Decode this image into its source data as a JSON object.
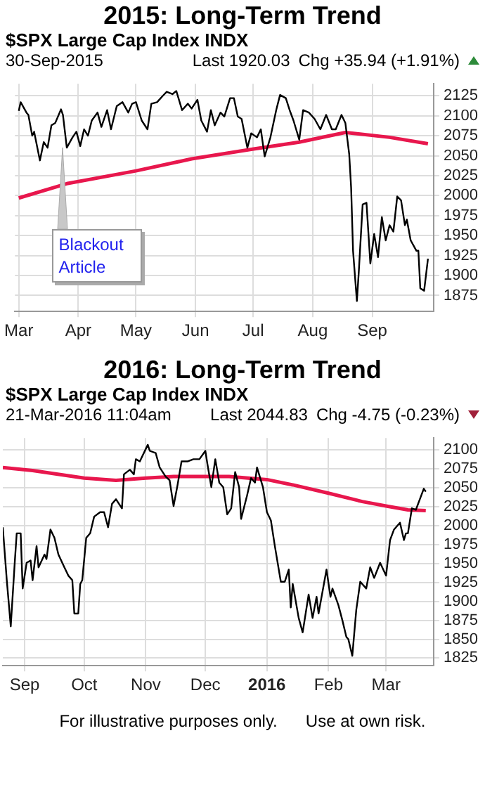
{
  "chart_data": [
    {
      "type": "line",
      "title": "2015:  Long-Term Trend",
      "subtitle": "$SPX  Large Cap Index  INDX",
      "annotations": [
        "30-Sep-2015",
        "Last 1920.03",
        "Chg +35.94 (+1.91%)",
        {
          "text": "Blackout Article",
          "x": "2015-03-24",
          "y": 2060
        }
      ],
      "xlim": [
        "2015-02-27",
        "2015-10-03"
      ],
      "xticks": [
        {
          "value": "2015-03-01",
          "label": "Mar"
        },
        {
          "value": "2015-04-01",
          "label": "Apr"
        },
        {
          "value": "2015-05-01",
          "label": "May"
        },
        {
          "value": "2015-06-01",
          "label": "Jun"
        },
        {
          "value": "2015-07-01",
          "label": "Jul"
        },
        {
          "value": "2015-08-01",
          "label": "Aug"
        },
        {
          "value": "2015-09-01",
          "label": "Sep"
        }
      ],
      "ylim": [
        1855,
        2140
      ],
      "yticks": [
        1875,
        1900,
        1925,
        1950,
        1975,
        2000,
        2025,
        2050,
        2075,
        2100,
        2125
      ],
      "grid": true,
      "series": [
        {
          "color": "#000000",
          "x": [
            "2015-03-01",
            "2015-03-02",
            "2015-03-05",
            "2015-03-06",
            "2015-03-08",
            "2015-03-09",
            "2015-03-12",
            "2015-03-14",
            "2015-03-16",
            "2015-03-18",
            "2015-03-20",
            "2015-03-23",
            "2015-03-24",
            "2015-03-26",
            "2015-03-29",
            "2015-03-31",
            "2015-04-02",
            "2015-04-04",
            "2015-04-06",
            "2015-04-08",
            "2015-04-11",
            "2015-04-13",
            "2015-04-16",
            "2015-04-18",
            "2015-04-21",
            "2015-04-24",
            "2015-04-27",
            "2015-04-29",
            "2015-05-01",
            "2015-05-04",
            "2015-05-07",
            "2015-05-09",
            "2015-05-12",
            "2015-05-15",
            "2015-05-17",
            "2015-05-20",
            "2015-05-22",
            "2015-05-25",
            "2015-05-28",
            "2015-05-30",
            "2015-06-02",
            "2015-06-04",
            "2015-06-07",
            "2015-06-09",
            "2015-06-11",
            "2015-06-14",
            "2015-06-16",
            "2015-06-19",
            "2015-06-21",
            "2015-06-23",
            "2015-06-25",
            "2015-06-28",
            "2015-06-30",
            "2015-07-03",
            "2015-07-05",
            "2015-07-07",
            "2015-07-10",
            "2015-07-13",
            "2015-07-15",
            "2015-07-18",
            "2015-07-20",
            "2015-07-22",
            "2015-07-25",
            "2015-07-27",
            "2015-07-30",
            "2015-08-02",
            "2015-08-05",
            "2015-08-08",
            "2015-08-11",
            "2015-08-13",
            "2015-08-16",
            "2015-08-18",
            "2015-08-20",
            "2015-08-21",
            "2015-08-22",
            "2015-08-24",
            "2015-08-25",
            "2015-08-27",
            "2015-08-29",
            "2015-08-31",
            "2015-09-02",
            "2015-09-04",
            "2015-09-06",
            "2015-09-08",
            "2015-09-10",
            "2015-09-12",
            "2015-09-14",
            "2015-09-16",
            "2015-09-18",
            "2015-09-19",
            "2015-09-21",
            "2015-09-24",
            "2015-09-25",
            "2015-09-26",
            "2015-09-28",
            "2015-09-30"
          ],
          "values": [
            2106,
            2117,
            2104,
            2101,
            2075,
            2080,
            2044,
            2067,
            2060,
            2088,
            2091,
            2108,
            2101,
            2060,
            2073,
            2080,
            2062,
            2083,
            2075,
            2094,
            2104,
            2086,
            2107,
            2083,
            2112,
            2117,
            2104,
            2115,
            2117,
            2094,
            2083,
            2115,
            2117,
            2125,
            2130,
            2127,
            2131,
            2107,
            2115,
            2109,
            2120,
            2094,
            2080,
            2107,
            2088,
            2104,
            2099,
            2122,
            2122,
            2099,
            2096,
            2060,
            2078,
            2073,
            2083,
            2049,
            2073,
            2107,
            2126,
            2122,
            2107,
            2094,
            2070,
            2107,
            2104,
            2096,
            2083,
            2101,
            2083,
            2083,
            2101,
            2091,
            2052,
            2010,
            1931,
            1868,
            1905,
            1989,
            1991,
            1915,
            1952,
            1923,
            1973,
            1944,
            1963,
            1955,
            1999,
            1994,
            1963,
            1970,
            1944,
            1931,
            1931,
            1884,
            1881,
            1921
          ]
        },
        {
          "color": "#e8174d",
          "x": [
            "2015-03-01",
            "2015-03-26",
            "2015-05-01",
            "2015-05-30",
            "2015-06-30",
            "2015-07-25",
            "2015-08-18",
            "2015-09-10",
            "2015-09-30"
          ],
          "values": [
            1997,
            2015,
            2031,
            2046,
            2058,
            2067,
            2079,
            2073,
            2065
          ]
        }
      ]
    },
    {
      "type": "line",
      "title": "2016:  Long-Term Trend",
      "subtitle": "$SPX  Large Cap Index  INDX",
      "annotations": [
        "21-Mar-2016 11:04am",
        "Last 2044.83",
        "Chg -4.75 (-0.23%)",
        "For illustrative purposes only.      Use at own risk."
      ],
      "xlim": [
        "2015-08-21",
        "2016-03-25"
      ],
      "xticks": [
        {
          "value": "2015-09-01",
          "label": "Sep"
        },
        {
          "value": "2015-10-01",
          "label": "Oct"
        },
        {
          "value": "2015-11-01",
          "label": "Nov"
        },
        {
          "value": "2015-12-01",
          "label": "Dec"
        },
        {
          "value": "2016-01-01",
          "label": "2016"
        },
        {
          "value": "2016-02-01",
          "label": "Feb"
        },
        {
          "value": "2016-03-01",
          "label": "Mar"
        }
      ],
      "ylim": [
        1815,
        2116
      ],
      "yticks": [
        1825,
        1850,
        1875,
        1900,
        1925,
        1950,
        1975,
        2000,
        2025,
        2050,
        2075,
        2100
      ],
      "grid": true,
      "series": [
        {
          "color": "#000000",
          "x": [
            "2015-08-21",
            "2015-08-23",
            "2015-08-25",
            "2015-08-27",
            "2015-08-28",
            "2015-08-30",
            "2015-08-31",
            "2015-09-02",
            "2015-09-04",
            "2015-09-05",
            "2015-09-07",
            "2015-09-08",
            "2015-09-11",
            "2015-09-12",
            "2015-09-14",
            "2015-09-16",
            "2015-09-18",
            "2015-09-21",
            "2015-09-23",
            "2015-09-25",
            "2015-09-26",
            "2015-09-28",
            "2015-09-29",
            "2015-09-30",
            "2015-10-02",
            "2015-10-04",
            "2015-10-06",
            "2015-10-09",
            "2015-10-11",
            "2015-10-13",
            "2015-10-15",
            "2015-10-17",
            "2015-10-20",
            "2015-10-21",
            "2015-10-24",
            "2015-10-26",
            "2015-10-27",
            "2015-10-29",
            "2015-11-02",
            "2015-11-03",
            "2015-11-06",
            "2015-11-08",
            "2015-11-11",
            "2015-11-13",
            "2015-11-15",
            "2015-11-17",
            "2015-11-19",
            "2015-11-22",
            "2015-11-25",
            "2015-11-28",
            "2015-12-01",
            "2015-12-02",
            "2015-12-04",
            "2015-12-06",
            "2015-12-08",
            "2015-12-10",
            "2015-12-12",
            "2015-12-14",
            "2015-12-16",
            "2015-12-18",
            "2015-12-19",
            "2015-12-22",
            "2015-12-24",
            "2015-12-26",
            "2015-12-27",
            "2015-12-30",
            "2016-01-01",
            "2016-01-03",
            "2016-01-05",
            "2016-01-08",
            "2016-01-10",
            "2016-01-12",
            "2016-01-13",
            "2016-01-14",
            "2016-01-17",
            "2016-01-19",
            "2016-01-22",
            "2016-01-24",
            "2016-01-26",
            "2016-01-27",
            "2016-01-31",
            "2016-02-02",
            "2016-02-03",
            "2016-02-06",
            "2016-02-08",
            "2016-02-10",
            "2016-02-11",
            "2016-02-13",
            "2016-02-15",
            "2016-02-17",
            "2016-02-20",
            "2016-02-22",
            "2016-02-24",
            "2016-02-27",
            "2016-03-01",
            "2016-03-03",
            "2016-03-05",
            "2016-03-08",
            "2016-03-10",
            "2016-03-11",
            "2016-03-12",
            "2016-03-14",
            "2016-03-16",
            "2016-03-18",
            "2016-03-20",
            "2016-03-21"
          ],
          "values": [
            1998,
            1928,
            1867,
            1951,
            1990,
            1990,
            1917,
            1951,
            1954,
            1928,
            1973,
            1945,
            1962,
            1956,
            1995,
            1984,
            1962,
            1945,
            1934,
            1928,
            1884,
            1884,
            1923,
            1928,
            1984,
            1990,
            2012,
            2018,
            2018,
            1998,
            2029,
            2035,
            2023,
            2068,
            2074,
            2068,
            2088,
            2085,
            2107,
            2099,
            2096,
            2077,
            2065,
            2060,
            2026,
            2054,
            2085,
            2085,
            2088,
            2088,
            2099,
            2082,
            2051,
            2088,
            2057,
            2051,
            2015,
            2023,
            2071,
            2051,
            2009,
            2040,
            2063,
            2057,
            2077,
            2051,
            2018,
            2007,
            1973,
            1926,
            1926,
            1942,
            1892,
            1923,
            1878,
            1859,
            1909,
            1878,
            1906,
            1884,
            1942,
            1906,
            1917,
            1895,
            1875,
            1853,
            1850,
            1828,
            1889,
            1926,
            1917,
            1945,
            1931,
            1951,
            1934,
            1981,
            1995,
            2004,
            1981,
            1990,
            1990,
            2023,
            2021,
            2035,
            2049,
            2045
          ]
        },
        {
          "color": "#e8174d",
          "x": [
            "2015-08-21",
            "2015-09-05",
            "2015-10-01",
            "2015-10-17",
            "2015-11-01",
            "2015-11-15",
            "2015-12-13",
            "2016-01-01",
            "2016-01-14",
            "2016-02-01",
            "2016-02-18",
            "2016-03-01",
            "2016-03-12",
            "2016-03-21"
          ],
          "values": [
            2077,
            2073,
            2063,
            2060,
            2063,
            2065,
            2065,
            2061,
            2054,
            2043,
            2032,
            2026,
            2021,
            2020
          ]
        }
      ]
    }
  ]
}
